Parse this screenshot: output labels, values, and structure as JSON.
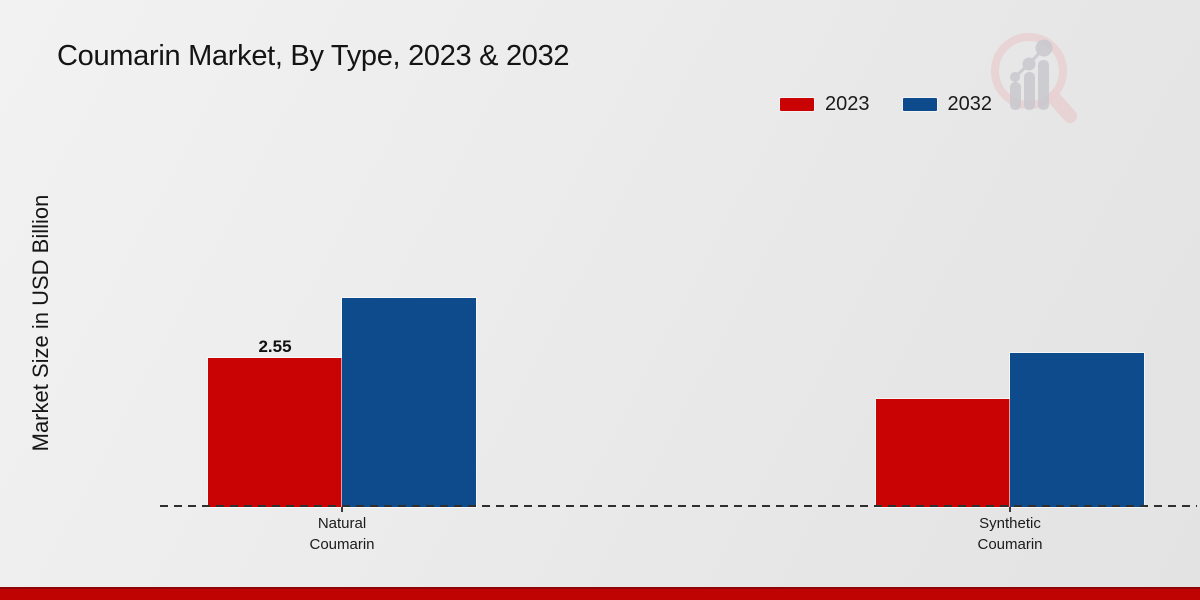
{
  "title": "Coumarin Market, By Type, 2023 & 2032",
  "y_axis": {
    "label": "Market Size in USD Billion"
  },
  "legend": {
    "items": [
      {
        "label": "2023",
        "color": "#c90303"
      },
      {
        "label": "2032",
        "color": "#0d4b8c"
      }
    ]
  },
  "branding": {
    "watermark_icon": "magnifier-bar-chart-logo",
    "footer_color": "#bf0202"
  },
  "chart_data": {
    "type": "bar",
    "title": "Coumarin Market, By Type, 2023 & 2032",
    "ylabel": "Market Size in USD Billion",
    "categories": [
      "Natural\nCoumarin",
      "Synthetic\nCoumarin"
    ],
    "series": [
      {
        "name": "2023",
        "color": "#c90303",
        "values": [
          2.55,
          1.85
        ]
      },
      {
        "name": "2032",
        "color": "#0d4b8c",
        "values": [
          3.58,
          2.64
        ]
      }
    ],
    "data_labels": [
      {
        "series_index": 0,
        "category_index": 0,
        "text": "2.55"
      }
    ],
    "ylim": [
      0,
      4.3
    ],
    "grid": false,
    "legend_position": "top-right"
  }
}
